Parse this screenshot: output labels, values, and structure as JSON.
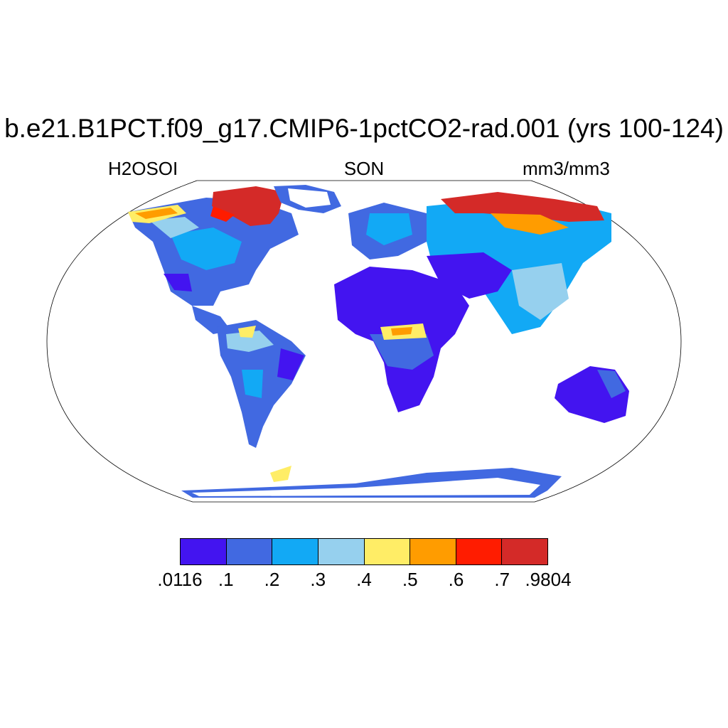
{
  "figure": {
    "title": "b.e21.B1PCT.f09_g17.CMIP6-1pctCO2-rad.001 (yrs 100-124)",
    "left_label": "H2OSOI",
    "center_label": "SON",
    "right_label": "mm3/mm3"
  },
  "colorbar": {
    "colors": [
      "#4314f0",
      "#4169e1",
      "#12a9f5",
      "#96d0ee",
      "#ffed66",
      "#ff9c00",
      "#ff1c00",
      "#d42a28"
    ],
    "labels": [
      ".0116",
      ".1",
      ".2",
      ".3",
      ".4",
      ".5",
      ".6",
      ".7",
      ".9804"
    ]
  },
  "map": {
    "projection": "Robinson",
    "ocean_color": "#ffffff"
  }
}
